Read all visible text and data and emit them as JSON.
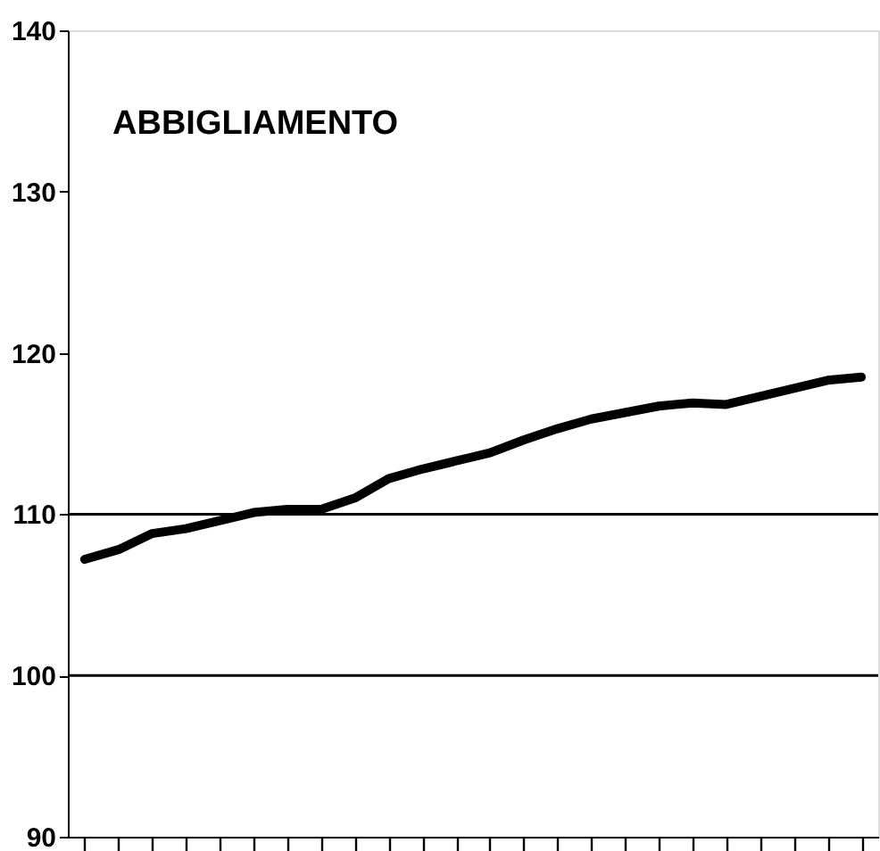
{
  "chart_data": {
    "type": "line",
    "title": "ABBIGLIAMENTO",
    "categories": [
      null,
      null,
      null,
      null,
      null,
      null,
      null,
      null,
      null,
      null,
      null,
      null,
      null,
      null,
      null,
      null,
      null,
      null,
      null,
      null,
      null,
      null,
      null,
      null
    ],
    "series": [
      {
        "color": "#000000",
        "values": [
          107.2,
          107.8,
          108.8,
          109.1,
          109.6,
          110.1,
          110.3,
          110.3,
          111.0,
          112.2,
          112.8,
          113.3,
          113.8,
          114.6,
          115.3,
          115.9,
          116.3,
          116.7,
          116.9,
          116.8,
          117.3,
          117.8,
          118.3,
          118.5
        ]
      }
    ],
    "ylim": [
      90,
      140
    ],
    "yticks": [
      90,
      100,
      110,
      120,
      130,
      140
    ],
    "ref_lines": [
      {
        "axis": "y",
        "value": 100,
        "color": "#000000"
      },
      {
        "axis": "y",
        "value": 110,
        "color": "#000000"
      }
    ],
    "grid": false,
    "marker": "none",
    "line_style": "solid"
  }
}
